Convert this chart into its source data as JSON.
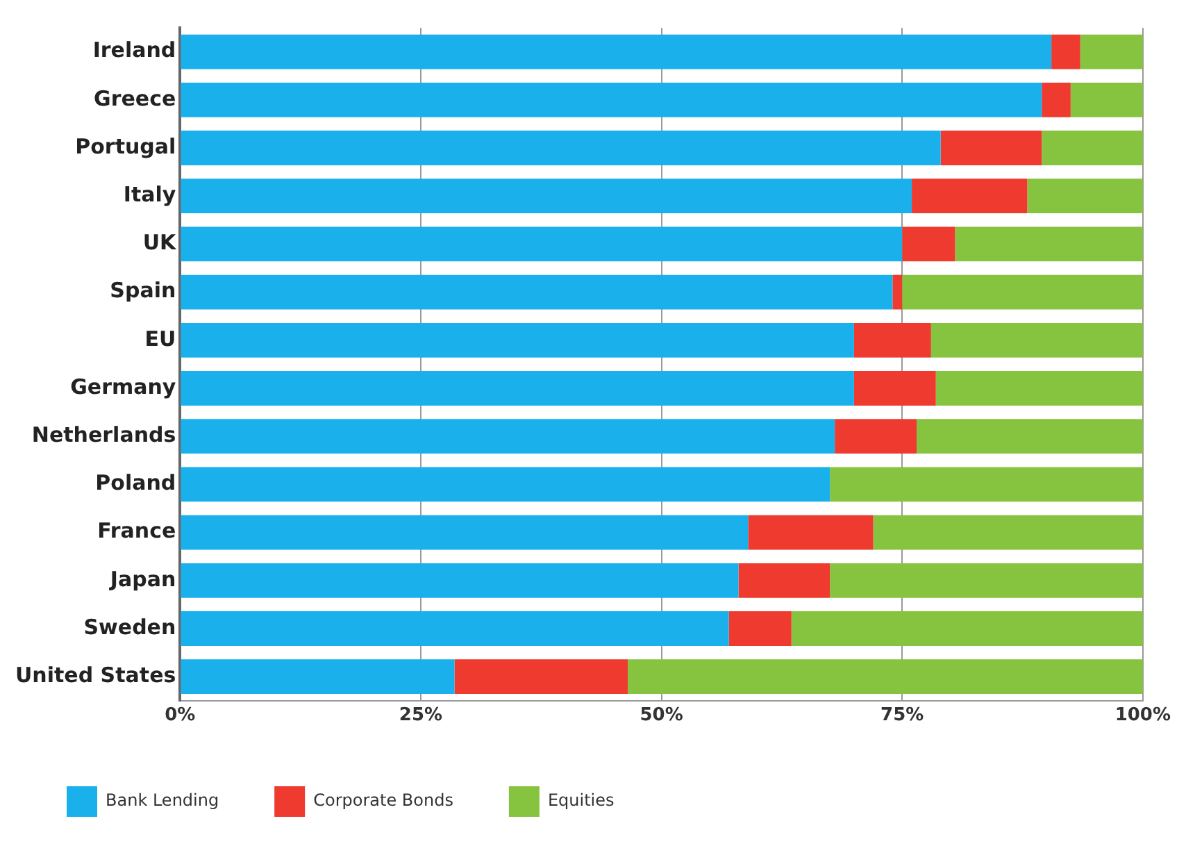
{
  "chart_data": {
    "type": "bar",
    "orientation": "horizontal",
    "stacked": true,
    "categories": [
      "Ireland",
      "Greece",
      "Portugal",
      "Italy",
      "UK",
      "Spain",
      "EU",
      "Germany",
      "Netherlands",
      "Poland",
      "France",
      "Japan",
      "Sweden",
      "United States"
    ],
    "series": [
      {
        "name": "Bank Lending",
        "color": "#1ab0ec",
        "values": [
          90.5,
          89.5,
          79,
          76,
          75,
          74,
          70,
          70,
          68,
          67.5,
          59,
          58,
          57,
          28.5
        ]
      },
      {
        "name": "Corporate Bonds",
        "color": "#ee3a2f",
        "values": [
          3,
          3,
          10.5,
          12,
          5.5,
          1,
          8,
          8.5,
          8.5,
          0,
          13,
          9.5,
          6.5,
          18
        ]
      },
      {
        "name": "Equities",
        "color": "#86c440",
        "values": [
          6.5,
          7.5,
          10.5,
          12,
          19.5,
          25,
          22,
          21.5,
          23.5,
          32.5,
          28,
          32.5,
          36.5,
          53.5
        ]
      }
    ],
    "xlim": [
      0,
      100
    ],
    "xticks": [
      {
        "value": 0,
        "label": "0%"
      },
      {
        "value": 25,
        "label": "25%"
      },
      {
        "value": 50,
        "label": "50%"
      },
      {
        "value": 75,
        "label": "75%"
      },
      {
        "value": 100,
        "label": "100%"
      }
    ],
    "grid": "x",
    "legend": "bottom left"
  }
}
